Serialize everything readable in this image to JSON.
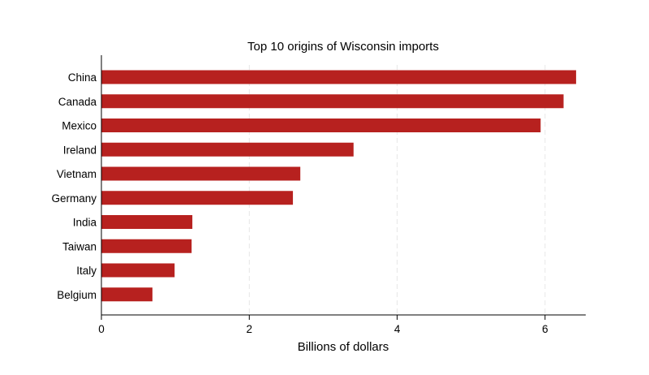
{
  "chart_data": {
    "type": "bar",
    "orientation": "horizontal",
    "title": "Top 10 origins of Wisconsin imports",
    "xlabel": "Billions of dollars",
    "ylabel": "",
    "categories": [
      "China",
      "Canada",
      "Mexico",
      "Ireland",
      "Vietnam",
      "Germany",
      "India",
      "Taiwan",
      "Italy",
      "Belgium"
    ],
    "values": [
      6.42,
      6.25,
      5.94,
      3.41,
      2.69,
      2.59,
      1.23,
      1.22,
      0.99,
      0.69
    ],
    "xlim": [
      0,
      6.5
    ],
    "xticks": [
      0,
      2,
      4,
      6
    ],
    "xtick_labels": [
      "0",
      "2",
      "4",
      "6"
    ],
    "grid": true,
    "bar_color": "#b7211f"
  }
}
